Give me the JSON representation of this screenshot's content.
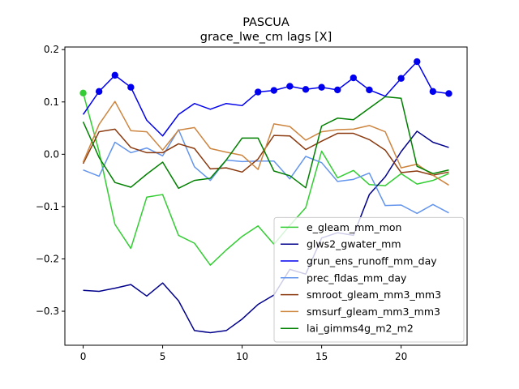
{
  "chart_data": {
    "type": "line",
    "title": "PASCUA",
    "subtitle": "grace_lwe_cm lags [X]",
    "xlabel": "",
    "ylabel": "",
    "xlim": [
      -1.15,
      24.15
    ],
    "ylim": [
      -0.365,
      0.205
    ],
    "xticks": [
      0,
      5,
      10,
      15,
      20
    ],
    "yticks": [
      -0.3,
      -0.2,
      -0.1,
      0.0,
      0.1,
      0.2
    ],
    "ytick_labels": [
      "−0.3",
      "−0.2",
      "−0.1",
      "0.0",
      "0.1",
      "0.2"
    ],
    "grid": false,
    "legend_position": "lower-right",
    "x": [
      0,
      1,
      2,
      3,
      4,
      5,
      6,
      7,
      8,
      9,
      10,
      11,
      12,
      13,
      14,
      15,
      16,
      17,
      18,
      19,
      20,
      21,
      22,
      23
    ],
    "series": [
      {
        "name": "e_gleam_mm_mon",
        "color": "#32cd32",
        "values": [
          0.117,
          0.005,
          -0.134,
          -0.18,
          -0.082,
          -0.077,
          -0.155,
          -0.17,
          -0.212,
          -0.183,
          -0.157,
          -0.137,
          -0.172,
          -0.136,
          -0.102,
          0.006,
          -0.045,
          -0.031,
          -0.058,
          -0.06,
          -0.037,
          -0.057,
          -0.05,
          -0.037
        ],
        "markers": [
          0
        ]
      },
      {
        "name": "glws2_gwater_mm",
        "color": "#00008b",
        "values": [
          -0.26,
          -0.262,
          -0.256,
          -0.249,
          -0.271,
          -0.246,
          -0.28,
          -0.337,
          -0.341,
          -0.337,
          -0.315,
          -0.287,
          -0.269,
          -0.22,
          -0.229,
          -0.16,
          -0.15,
          -0.155,
          -0.077,
          -0.043,
          0.005,
          0.044,
          0.023,
          0.013
        ],
        "markers": []
      },
      {
        "name": "grun_ens_runoff_mm_day",
        "color": "#0000ee",
        "values": [
          0.076,
          0.12,
          0.151,
          0.128,
          0.065,
          0.035,
          0.076,
          0.097,
          0.086,
          0.097,
          0.093,
          0.119,
          0.122,
          0.13,
          0.124,
          0.128,
          0.123,
          0.146,
          0.123,
          0.111,
          0.145,
          0.177,
          0.12,
          0.116
        ],
        "markers": [
          1,
          2,
          3,
          11,
          12,
          13,
          14,
          15,
          16,
          17,
          18,
          20,
          21,
          22,
          23
        ]
      },
      {
        "name": "prec_fldas_mm_day",
        "color": "#6495ed",
        "values": [
          -0.03,
          -0.042,
          0.023,
          0.003,
          0.012,
          -0.003,
          0.047,
          -0.024,
          -0.05,
          -0.011,
          -0.014,
          -0.013,
          -0.013,
          -0.047,
          -0.004,
          -0.016,
          -0.052,
          -0.048,
          -0.036,
          -0.098,
          -0.097,
          -0.113,
          -0.096,
          -0.112
        ],
        "markers": []
      },
      {
        "name": "smroot_gleam_mm3_mm3",
        "color": "#8b3a0f",
        "values": [
          -0.018,
          0.043,
          0.048,
          0.013,
          0.003,
          0.003,
          0.02,
          0.011,
          -0.028,
          -0.026,
          -0.034,
          -0.009,
          0.036,
          0.035,
          0.009,
          0.025,
          0.04,
          0.04,
          0.028,
          0.008,
          -0.035,
          -0.032,
          -0.04,
          -0.034
        ],
        "markers": []
      },
      {
        "name": "smsurf_gleam_mm3_mm3",
        "color": "#cd853f",
        "values": [
          -0.015,
          0.057,
          0.101,
          0.045,
          0.043,
          0.008,
          0.046,
          0.051,
          0.011,
          0.004,
          -0.002,
          -0.029,
          0.058,
          0.053,
          0.027,
          0.043,
          0.047,
          0.048,
          0.055,
          0.043,
          -0.026,
          -0.019,
          -0.04,
          -0.059
        ],
        "markers": []
      },
      {
        "name": "lai_gimms4g_m2_m2",
        "color": "#008000",
        "values": [
          0.062,
          -0.006,
          -0.054,
          -0.063,
          -0.038,
          -0.015,
          -0.065,
          -0.05,
          -0.046,
          -0.011,
          0.031,
          0.031,
          -0.032,
          -0.041,
          -0.064,
          0.054,
          0.069,
          0.066,
          0.088,
          0.11,
          0.107,
          -0.023,
          -0.037,
          -0.03
        ],
        "markers": []
      }
    ]
  }
}
